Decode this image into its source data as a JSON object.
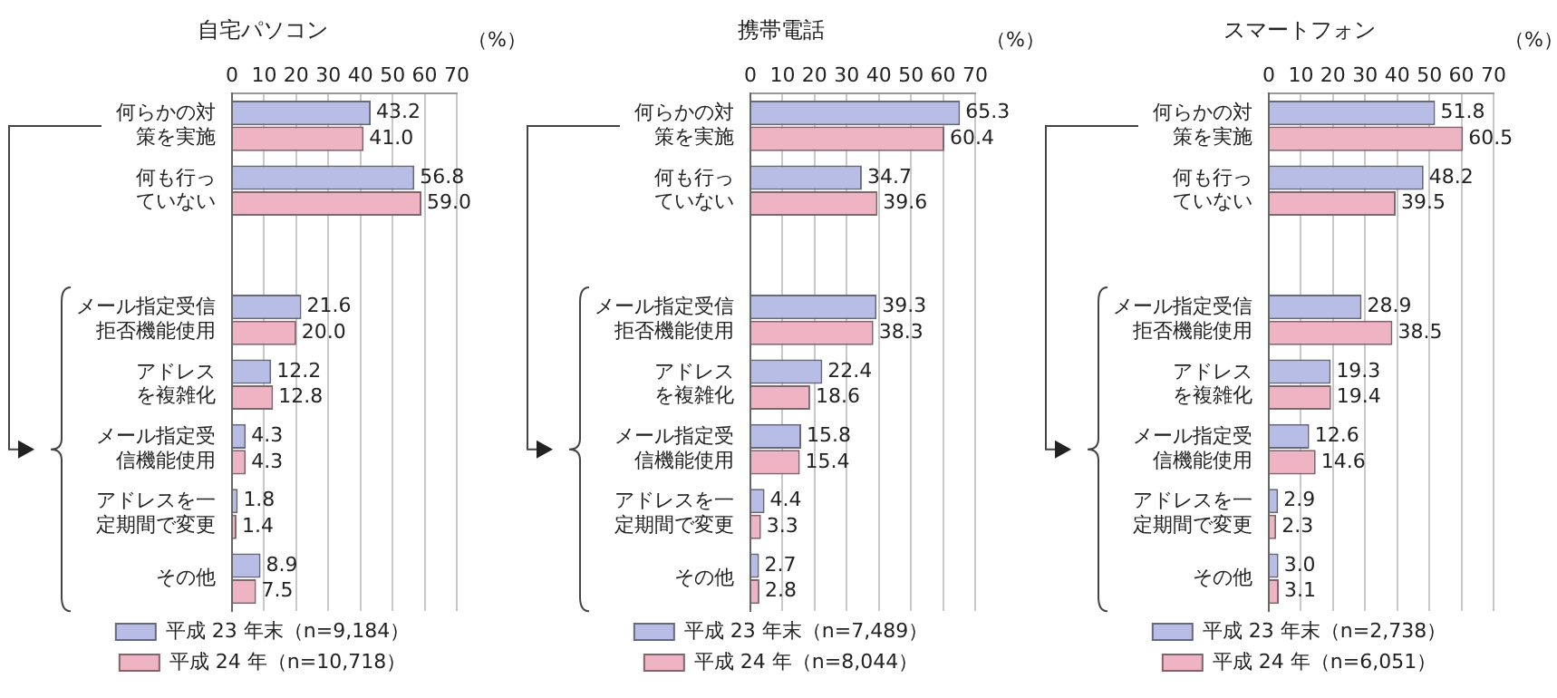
{
  "chart_data": [
    {
      "type": "bar",
      "orientation": "horizontal",
      "title": "自宅パソコン",
      "xlabel": "（%）",
      "categories": [
        "何らかの対策を実施",
        "何も行っていない",
        null,
        "メール指定受信拒否機能使用",
        "アドレスを複雑化",
        "メール指定受信機能使用",
        "アドレスを一定期間で変更",
        "その他"
      ],
      "series": [
        {
          "name": "平成 23 年末（n=9,184）",
          "color": "#b8bde6",
          "values": [
            43.2,
            56.8,
            null,
            21.6,
            12.2,
            4.3,
            1.8,
            8.9
          ],
          "value_labels": [
            "43.2",
            "56.8",
            null,
            "21.6",
            "12.2",
            "4.3",
            "1.8",
            "8.9"
          ]
        },
        {
          "name": "平成 24 年（n=10,718）",
          "color": "#eeb4c4",
          "values": [
            41.0,
            59.0,
            null,
            20.0,
            12.8,
            4.3,
            1.4,
            7.5
          ],
          "value_labels": [
            "41.0",
            "59.0",
            null,
            "20.0",
            "12.8",
            "4.3",
            "1.4",
            "7.5"
          ]
        }
      ],
      "xlim": [
        0,
        70
      ],
      "xticks": [
        0,
        10,
        20,
        30,
        40,
        50,
        60,
        70
      ],
      "grid": "x",
      "legend": "bottom"
    },
    {
      "type": "bar",
      "orientation": "horizontal",
      "title": "携帯電話",
      "xlabel": "（%）",
      "categories": [
        "何らかの対策を実施",
        "何も行っていない",
        null,
        "メール指定受信拒否機能使用",
        "アドレスを複雑化",
        "メール指定受信機能使用",
        "アドレスを一定期間で変更",
        "その他"
      ],
      "series": [
        {
          "name": "平成 23 年末（n=7,489）",
          "color": "#b8bde6",
          "values": [
            65.3,
            34.7,
            null,
            39.3,
            22.4,
            15.8,
            4.4,
            2.7
          ],
          "value_labels": [
            "65.3",
            "34.7",
            null,
            "39.3",
            "22.4",
            "15.8",
            "4.4",
            "2.7"
          ]
        },
        {
          "name": "平成 24 年（n=8,044）",
          "color": "#eeb4c4",
          "values": [
            60.4,
            39.6,
            null,
            38.3,
            18.6,
            15.4,
            3.3,
            2.8
          ],
          "value_labels": [
            "60.4",
            "39.6",
            null,
            "38.3",
            "18.6",
            "15.4",
            "3.3",
            "2.8"
          ]
        }
      ],
      "xlim": [
        0,
        70
      ],
      "xticks": [
        0,
        10,
        20,
        30,
        40,
        50,
        60,
        70
      ],
      "grid": "x",
      "legend": "bottom"
    },
    {
      "type": "bar",
      "orientation": "horizontal",
      "title": "スマートフォン",
      "xlabel": "（%）",
      "categories": [
        "何らかの対策を実施",
        "何も行っていない",
        null,
        "メール指定受信拒否機能使用",
        "アドレスを複雑化",
        "メール指定受信機能使用",
        "アドレスを一定期間で変更",
        "その他"
      ],
      "series": [
        {
          "name": "平成 23 年末（n=2,738）",
          "color": "#b8bde6",
          "values": [
            51.8,
            48.2,
            null,
            28.9,
            19.3,
            12.6,
            2.9,
            3.0
          ],
          "value_labels": [
            "51.8",
            "48.2",
            null,
            "28.9",
            "19.3",
            "12.6",
            "2.9",
            "3.0"
          ]
        },
        {
          "name": "平成 24 年（n=6,051）",
          "color": "#eeb4c4",
          "values": [
            60.5,
            39.5,
            null,
            38.5,
            19.4,
            14.6,
            2.3,
            3.1
          ],
          "value_labels": [
            "60.5",
            "39.5",
            null,
            "38.5",
            "19.4",
            "14.6",
            "2.3",
            "3.1"
          ]
        }
      ],
      "xlim": [
        0,
        70
      ],
      "xticks": [
        0,
        10,
        20,
        30,
        40,
        50,
        60,
        70
      ],
      "grid": "x",
      "legend": "bottom"
    }
  ]
}
